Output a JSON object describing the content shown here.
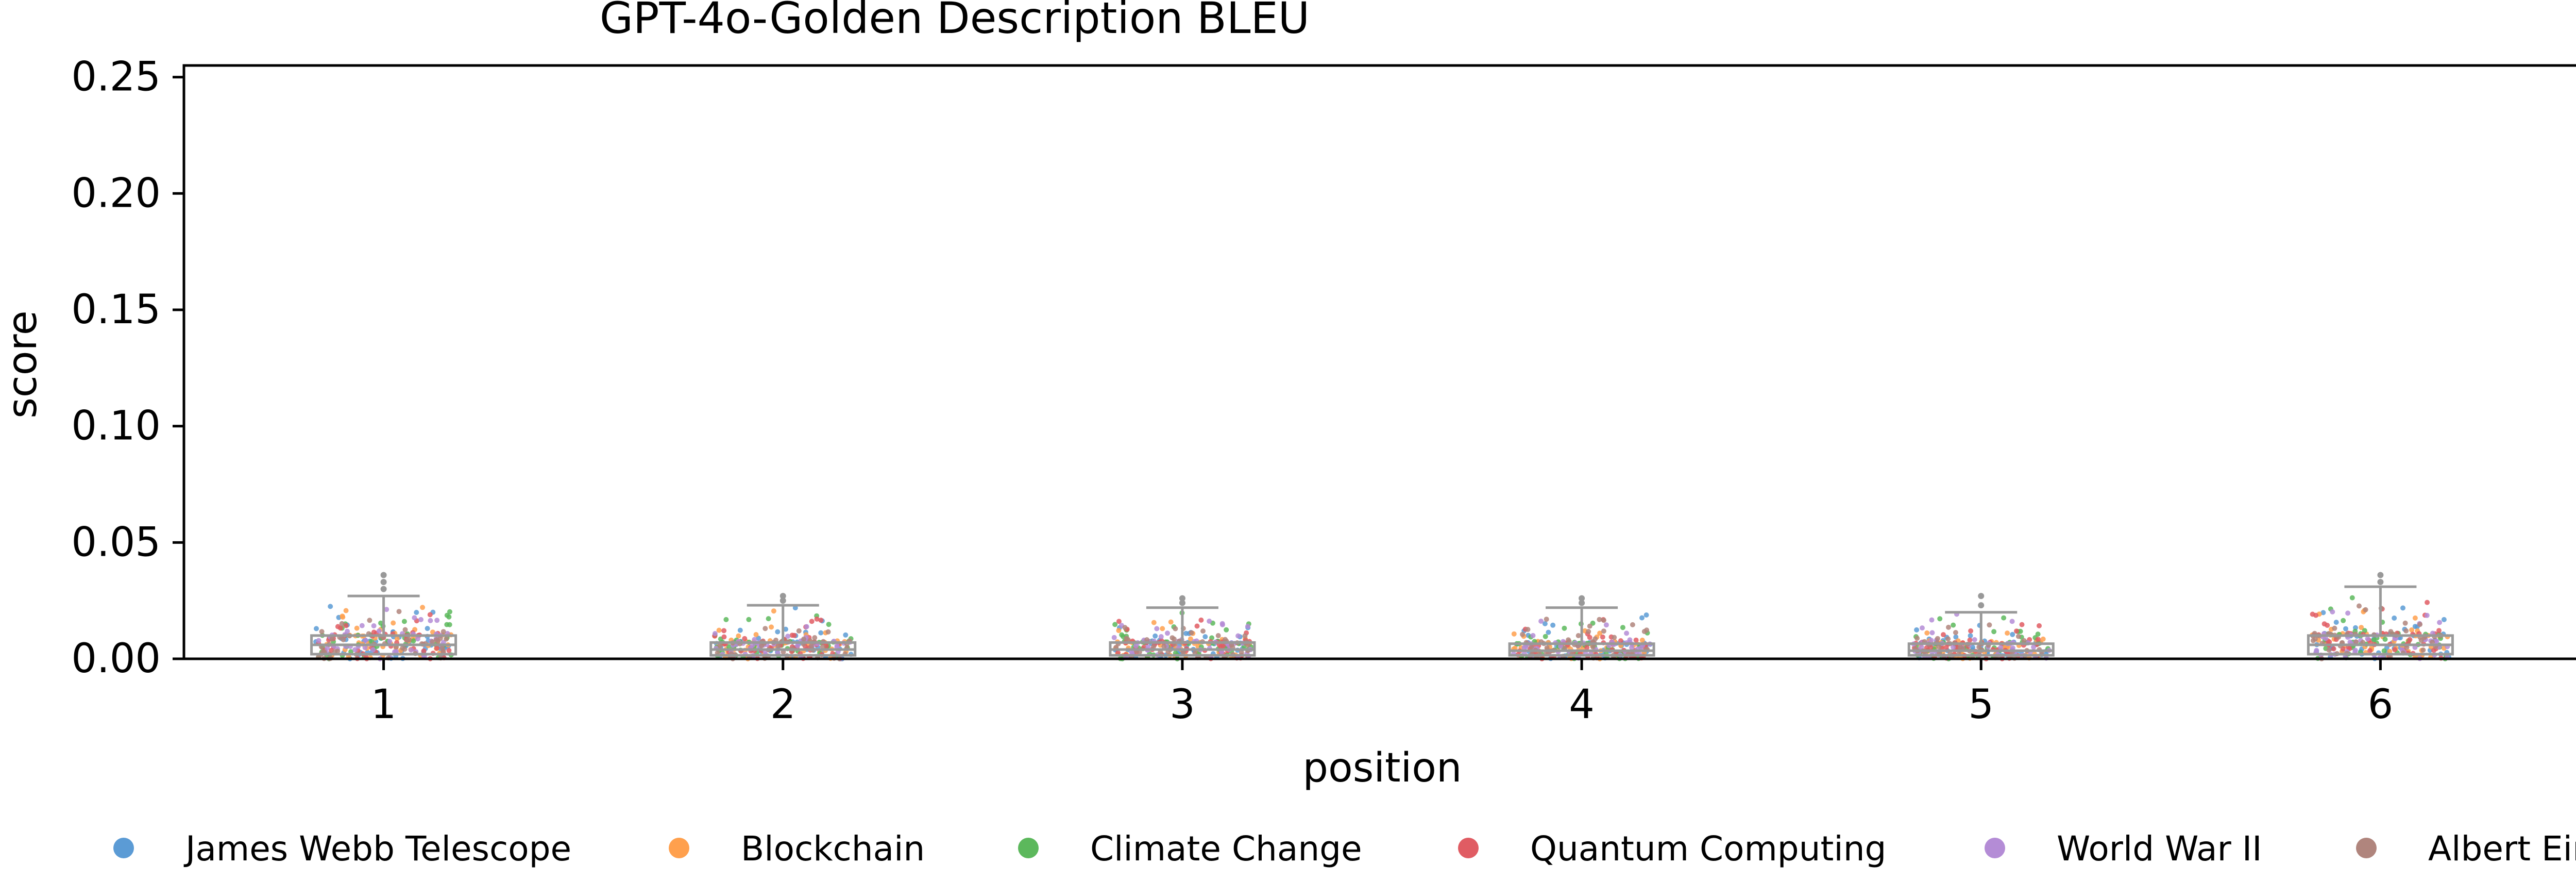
{
  "chart_data": {
    "type": "box",
    "title": "GPT-4o-Golden Description BLEU",
    "xlabel": "position",
    "ylabel": "score",
    "ylim": [
      0,
      0.255
    ],
    "yticks": [
      "0.00",
      "0.05",
      "0.10",
      "0.15",
      "0.20",
      "0.25"
    ],
    "categories": [
      "1",
      "2",
      "3",
      "4",
      "5",
      "6"
    ],
    "boxes": [
      {
        "position": "1",
        "q1": 0.002,
        "median": 0.006,
        "q3": 0.01,
        "whisker_low": 0.0,
        "whisker_high": 0.027,
        "outliers": [
          0.03,
          0.033,
          0.036
        ]
      },
      {
        "position": "2",
        "q1": 0.0015,
        "median": 0.004,
        "q3": 0.007,
        "whisker_low": 0.0,
        "whisker_high": 0.023,
        "outliers": [
          0.025,
          0.027
        ]
      },
      {
        "position": "3",
        "q1": 0.0015,
        "median": 0.004,
        "q3": 0.007,
        "whisker_low": 0.0,
        "whisker_high": 0.022,
        "outliers": [
          0.024,
          0.026
        ]
      },
      {
        "position": "4",
        "q1": 0.0015,
        "median": 0.0035,
        "q3": 0.0065,
        "whisker_low": 0.0,
        "whisker_high": 0.022,
        "outliers": [
          0.024,
          0.026
        ]
      },
      {
        "position": "5",
        "q1": 0.0015,
        "median": 0.0035,
        "q3": 0.0065,
        "whisker_low": 0.0,
        "whisker_high": 0.02,
        "outliers": [
          0.023,
          0.027
        ]
      },
      {
        "position": "6",
        "q1": 0.002,
        "median": 0.006,
        "q3": 0.01,
        "whisker_low": 0.0,
        "whisker_high": 0.031,
        "outliers": [
          0.033,
          0.036
        ]
      }
    ],
    "points_per_box_per_series": 45,
    "series": [
      {
        "name": "James Webb Telescope",
        "color": "#5b9bd5"
      },
      {
        "name": "Blockchain",
        "color": "#ffa04d"
      },
      {
        "name": "Climate Change",
        "color": "#5cb85c"
      },
      {
        "name": "Quantum Computing",
        "color": "#e05c63"
      },
      {
        "name": "World War II",
        "color": "#b48cd6"
      },
      {
        "name": "Albert Einstein",
        "color": "#b0857d"
      }
    ],
    "box_color": "#999999",
    "grid": false,
    "legend_position": "bottom"
  }
}
